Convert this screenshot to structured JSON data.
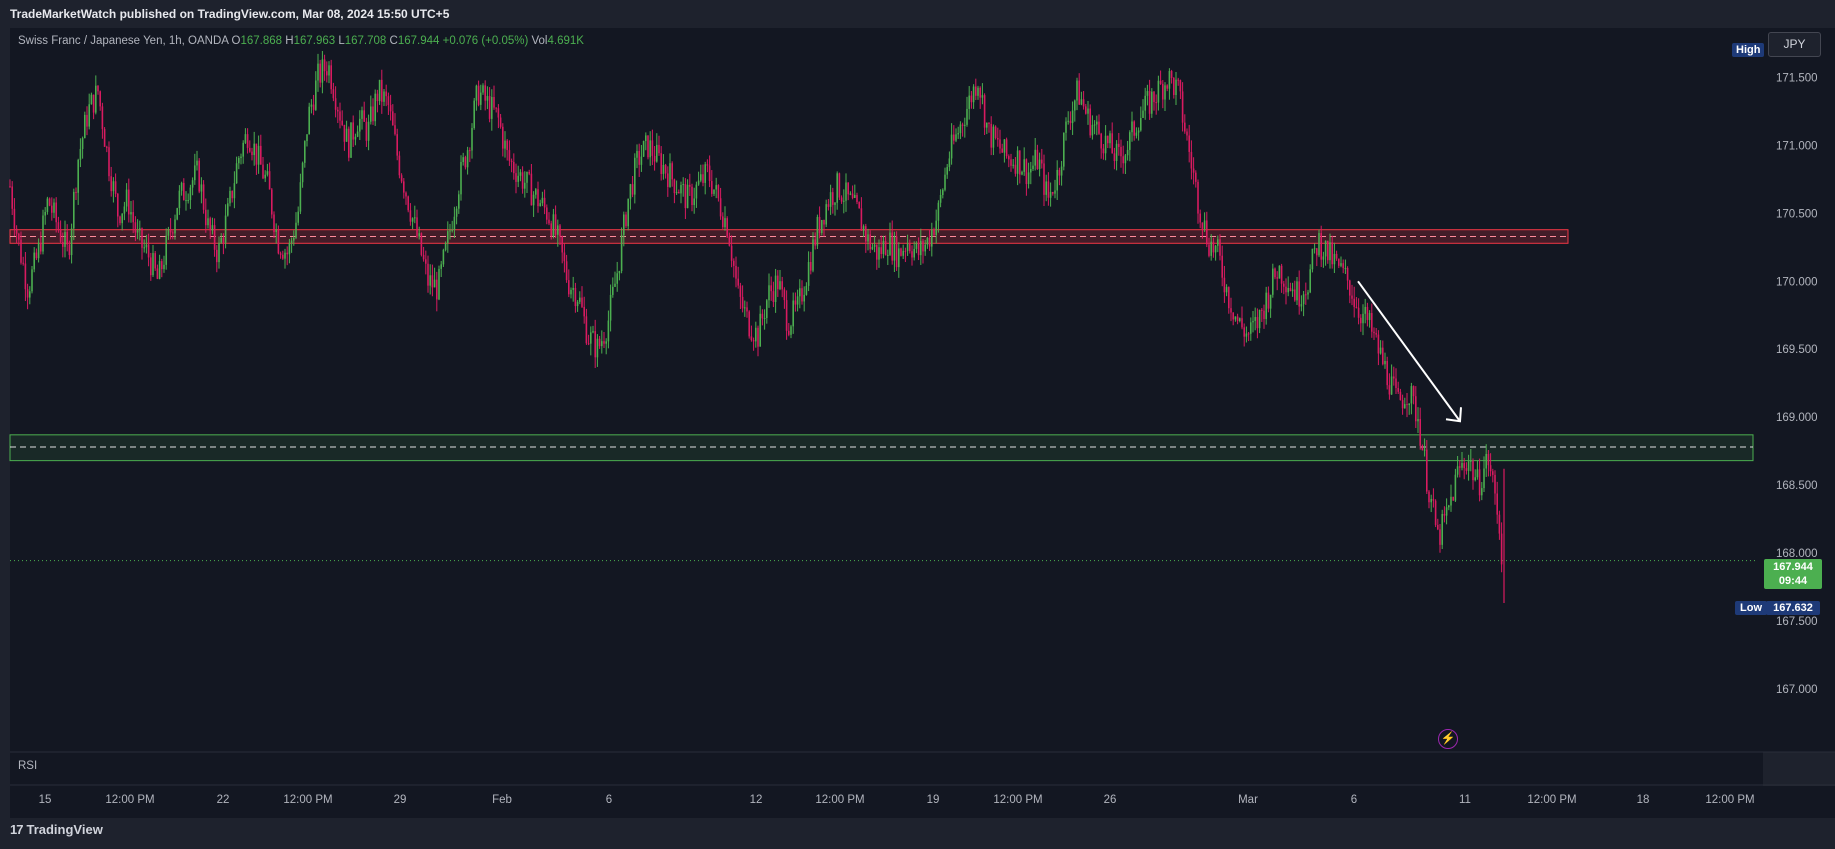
{
  "publisher": "TradeMarketWatch published on TradingView.com, Mar 08, 2024 15:50 UTC+5",
  "symbol": {
    "name": "Swiss Franc / Japanese Yen, 1h, OANDA",
    "open_label": "O",
    "open": "167.868",
    "high_label": "H",
    "high": "167.963",
    "low_label": "L",
    "low": "167.708",
    "close_label": "C",
    "close": "167.944",
    "change": "+0.076 (+0.05%)",
    "vol_label": "Vol",
    "vol": "4.691K"
  },
  "currency": "JPY",
  "badges": {
    "high": "High",
    "low": "Low",
    "low_price": "167.632",
    "last_price": "167.944",
    "countdown": "09:44"
  },
  "indicator": "RSI",
  "brand": "TradingView",
  "brand_logo": "17",
  "colors": {
    "up": "#4caf50",
    "down": "#d81b60",
    "resistance_zone": "#f23645",
    "support_zone": "#4caf50",
    "price_line": "#4caf50",
    "arrow": "#ffffff"
  },
  "chart_data": {
    "type": "candlestick",
    "title": "Swiss Franc / Japanese Yen, 1h, OANDA",
    "x_ticks": [
      "15",
      "12:00 PM",
      "22",
      "12:00 PM",
      "29",
      "Feb",
      "6",
      "12",
      "12:00 PM",
      "19",
      "12:00 PM",
      "26",
      "Mar",
      "6",
      "11",
      "12:00 PM",
      "18",
      "12:00 PM"
    ],
    "y_ticks": [
      "171.500",
      "171.000",
      "170.500",
      "170.000",
      "169.500",
      "169.000",
      "168.500",
      "168.000",
      "167.500",
      "167.000"
    ],
    "ylim": [
      166.55,
      171.85
    ],
    "grid": false,
    "resistance_zone": [
      170.28,
      170.38
    ],
    "resistance_level": 170.33,
    "support_zone": [
      168.68,
      168.87
    ],
    "support_level": 168.78,
    "last_price": 167.944,
    "session_low": 167.632,
    "trend_arrow": {
      "from_price": 170.0,
      "to_price": 168.97,
      "direction": "down"
    },
    "series_points": [
      [
        0,
        170.7
      ],
      [
        8,
        170.3
      ],
      [
        18,
        169.95
      ],
      [
        28,
        170.2
      ],
      [
        38,
        170.6
      ],
      [
        48,
        170.4
      ],
      [
        58,
        170.2
      ],
      [
        68,
        170.9
      ],
      [
        78,
        171.25
      ],
      [
        88,
        171.4
      ],
      [
        98,
        170.9
      ],
      [
        108,
        170.5
      ],
      [
        118,
        170.6
      ],
      [
        128,
        170.3
      ],
      [
        138,
        170.2
      ],
      [
        148,
        170.0
      ],
      [
        158,
        170.3
      ],
      [
        168,
        170.6
      ],
      [
        178,
        170.7
      ],
      [
        188,
        170.8
      ],
      [
        198,
        170.4
      ],
      [
        208,
        170.2
      ],
      [
        218,
        170.5
      ],
      [
        228,
        170.9
      ],
      [
        238,
        171.1
      ],
      [
        248,
        170.9
      ],
      [
        258,
        170.7
      ],
      [
        268,
        170.3
      ],
      [
        278,
        170.2
      ],
      [
        288,
        170.5
      ],
      [
        298,
        171.2
      ],
      [
        308,
        171.5
      ],
      [
        318,
        171.6
      ],
      [
        328,
        171.3
      ],
      [
        338,
        171.0
      ],
      [
        348,
        171.2
      ],
      [
        358,
        171.1
      ],
      [
        368,
        171.4
      ],
      [
        378,
        171.3
      ],
      [
        388,
        170.9
      ],
      [
        398,
        170.6
      ],
      [
        408,
        170.3
      ],
      [
        418,
        170.0
      ],
      [
        428,
        169.95
      ],
      [
        438,
        170.3
      ],
      [
        448,
        170.7
      ],
      [
        458,
        171.0
      ],
      [
        468,
        171.4
      ],
      [
        478,
        171.3
      ],
      [
        488,
        171.2
      ],
      [
        498,
        170.9
      ],
      [
        508,
        170.8
      ],
      [
        518,
        170.7
      ],
      [
        528,
        170.6
      ],
      [
        538,
        170.5
      ],
      [
        548,
        170.3
      ],
      [
        558,
        170.0
      ],
      [
        568,
        169.9
      ],
      [
        578,
        169.6
      ],
      [
        588,
        169.5
      ],
      [
        598,
        169.7
      ],
      [
        608,
        170.1
      ],
      [
        618,
        170.6
      ],
      [
        628,
        170.9
      ],
      [
        638,
        171.0
      ],
      [
        648,
        170.9
      ],
      [
        658,
        170.8
      ],
      [
        668,
        170.7
      ],
      [
        678,
        170.6
      ],
      [
        688,
        170.7
      ],
      [
        698,
        170.8
      ],
      [
        708,
        170.6
      ],
      [
        718,
        170.4
      ],
      [
        728,
        169.9
      ],
      [
        738,
        169.7
      ],
      [
        748,
        169.6
      ],
      [
        758,
        169.9
      ],
      [
        768,
        170.0
      ],
      [
        778,
        169.7
      ],
      [
        788,
        169.8
      ],
      [
        798,
        170.1
      ],
      [
        808,
        170.4
      ],
      [
        818,
        170.6
      ],
      [
        828,
        170.7
      ],
      [
        838,
        170.6
      ],
      [
        848,
        170.5
      ],
      [
        858,
        170.3
      ],
      [
        868,
        170.2
      ],
      [
        878,
        170.3
      ],
      [
        888,
        170.2
      ],
      [
        898,
        170.3
      ],
      [
        908,
        170.2
      ],
      [
        918,
        170.3
      ],
      [
        928,
        170.5
      ],
      [
        938,
        170.9
      ],
      [
        948,
        171.1
      ],
      [
        958,
        171.3
      ],
      [
        968,
        171.5
      ],
      [
        978,
        171.1
      ],
      [
        988,
        171.0
      ],
      [
        998,
        170.9
      ],
      [
        1008,
        170.9
      ],
      [
        1018,
        170.8
      ],
      [
        1028,
        170.9
      ],
      [
        1038,
        170.6
      ],
      [
        1048,
        170.8
      ],
      [
        1058,
        171.2
      ],
      [
        1068,
        171.4
      ],
      [
        1078,
        171.2
      ],
      [
        1088,
        171.1
      ],
      [
        1098,
        171.0
      ],
      [
        1108,
        170.9
      ],
      [
        1118,
        171.0
      ],
      [
        1128,
        171.2
      ],
      [
        1138,
        171.3
      ],
      [
        1148,
        171.4
      ],
      [
        1158,
        171.5
      ],
      [
        1168,
        171.4
      ],
      [
        1178,
        171.0
      ],
      [
        1188,
        170.6
      ],
      [
        1198,
        170.3
      ],
      [
        1208,
        170.2
      ],
      [
        1218,
        169.9
      ],
      [
        1228,
        169.7
      ],
      [
        1238,
        169.6
      ],
      [
        1248,
        169.7
      ],
      [
        1258,
        169.9
      ],
      [
        1268,
        170.1
      ],
      [
        1278,
        170.0
      ],
      [
        1288,
        169.9
      ],
      [
        1298,
        170.0
      ],
      [
        1308,
        170.3
      ],
      [
        1318,
        170.2
      ],
      [
        1328,
        170.1
      ],
      [
        1338,
        170.0
      ],
      [
        1348,
        169.8
      ],
      [
        1358,
        169.7
      ],
      [
        1368,
        169.5
      ],
      [
        1378,
        169.3
      ],
      [
        1388,
        169.1
      ],
      [
        1398,
        169.2
      ],
      [
        1408,
        169.0
      ],
      [
        1418,
        168.5
      ],
      [
        1428,
        168.1
      ],
      [
        1438,
        168.3
      ],
      [
        1448,
        168.6
      ],
      [
        1458,
        168.7
      ],
      [
        1468,
        168.5
      ],
      [
        1478,
        168.7
      ],
      [
        1488,
        168.3
      ],
      [
        1493,
        167.9
      ]
    ]
  }
}
